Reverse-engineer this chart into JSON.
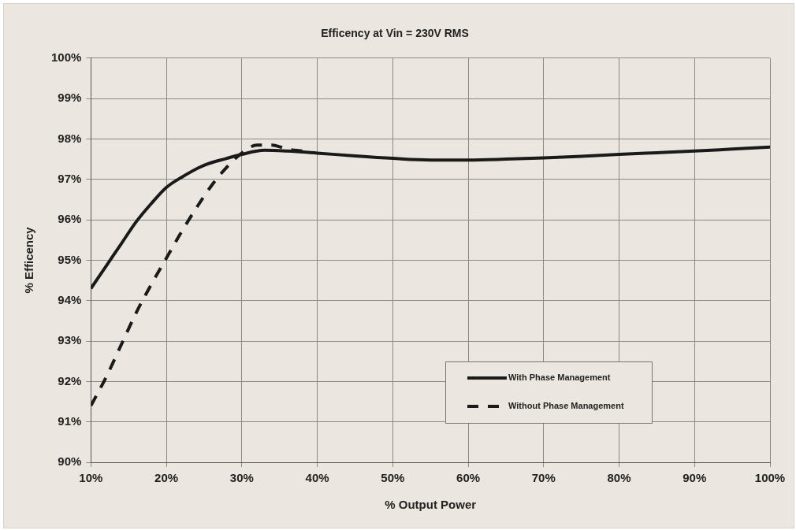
{
  "chart_data": {
    "type": "line",
    "title": "Efficency at Vin = 230V RMS",
    "xlabel": "% Output Power",
    "ylabel": "% Efficency",
    "xlim": [
      10,
      100
    ],
    "xticks": [
      {
        "value": 10,
        "label": "10%"
      },
      {
        "value": 20,
        "label": "20%"
      },
      {
        "value": 30,
        "label": "30%"
      },
      {
        "value": 40,
        "label": "40%"
      },
      {
        "value": 50,
        "label": "50%"
      },
      {
        "value": 60,
        "label": "60%"
      },
      {
        "value": 70,
        "label": "70%"
      },
      {
        "value": 80,
        "label": "80%"
      },
      {
        "value": 90,
        "label": "90%"
      },
      {
        "value": 100,
        "label": "100%"
      }
    ],
    "ylim": [
      90,
      100
    ],
    "yticks": [
      {
        "value": 90,
        "label": "90%"
      },
      {
        "value": 91,
        "label": "91%"
      },
      {
        "value": 92,
        "label": "92%"
      },
      {
        "value": 93,
        "label": "93%"
      },
      {
        "value": 94,
        "label": "94%"
      },
      {
        "value": 95,
        "label": "95%"
      },
      {
        "value": 96,
        "label": "96%"
      },
      {
        "value": 97,
        "label": "97%"
      },
      {
        "value": 98,
        "label": "98%"
      },
      {
        "value": 99,
        "label": "99%"
      },
      {
        "value": 100,
        "label": "100%"
      }
    ],
    "grid": true,
    "legend": "bottom right",
    "marker": "none",
    "series": [
      {
        "name": "With Phase Management",
        "color": "#1a1a1a",
        "line_style": "solid",
        "x": [
          10,
          12,
          14,
          16,
          18,
          20,
          22,
          25,
          28,
          30,
          33,
          36,
          40,
          45,
          50,
          55,
          60,
          65,
          70,
          75,
          80,
          85,
          90,
          95,
          100
        ],
        "values": [
          94.3,
          94.85,
          95.4,
          95.95,
          96.4,
          96.8,
          97.05,
          97.35,
          97.52,
          97.62,
          97.72,
          97.7,
          97.65,
          97.58,
          97.52,
          97.48,
          97.48,
          97.5,
          97.53,
          97.57,
          97.62,
          97.66,
          97.7,
          97.75,
          97.8
        ]
      },
      {
        "name": "Without Phase Management",
        "color": "#1a1a1a",
        "line_style": "dashed",
        "x": [
          10,
          12,
          14,
          16,
          18,
          20,
          22,
          24,
          26,
          28,
          30,
          32,
          34,
          36,
          38
        ],
        "values": [
          91.4,
          92.1,
          92.9,
          93.7,
          94.4,
          95.05,
          95.7,
          96.3,
          96.85,
          97.3,
          97.65,
          97.85,
          97.85,
          97.75,
          97.7
        ]
      }
    ]
  }
}
